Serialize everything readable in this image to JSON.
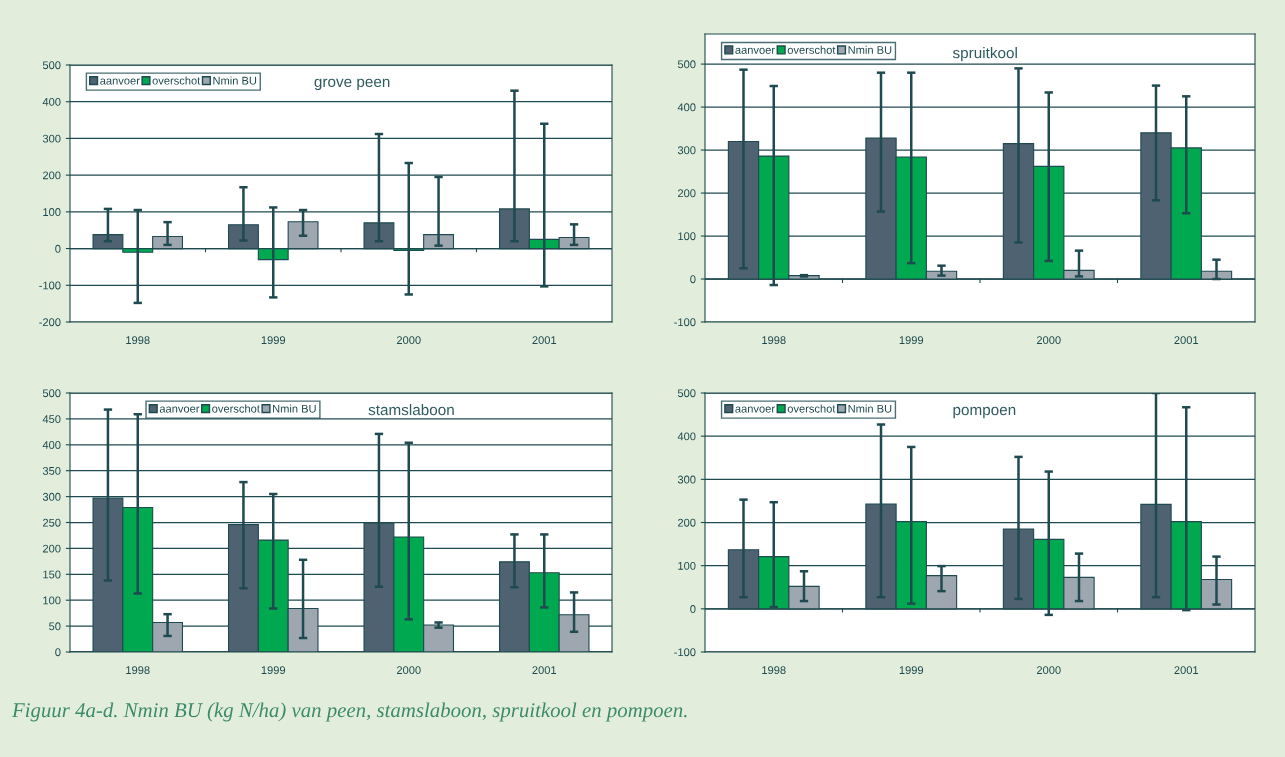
{
  "chart_data": [
    {
      "type": "bar",
      "title": "grove peen",
      "categories": [
        "1998",
        "1999",
        "2000",
        "2001"
      ],
      "ylim": [
        -200,
        500
      ],
      "yticks": [
        -200,
        -100,
        0,
        100,
        200,
        300,
        400,
        500
      ],
      "grid": "y",
      "legend": "top left",
      "series": [
        {
          "name": "aanvoer",
          "color": "#4f6272",
          "values": [
            38,
            65,
            70,
            108
          ],
          "errors": [
            [
              20,
              108
            ],
            [
              22,
              167
            ],
            [
              20,
              312
            ],
            [
              20,
              430
            ]
          ]
        },
        {
          "name": "overschot",
          "color": "#00a84f",
          "values": [
            -10,
            -30,
            -5,
            25
          ],
          "errors": [
            [
              -148,
              105
            ],
            [
              -133,
              112
            ],
            [
              -125,
              233
            ],
            [
              -103,
              340
            ]
          ]
        },
        {
          "name": "Nmin BU",
          "color": "#9ea7b0",
          "values": [
            33,
            73,
            38,
            30
          ],
          "errors": [
            [
              10,
              72
            ],
            [
              35,
              105
            ],
            [
              8,
              195
            ],
            [
              10,
              66
            ]
          ]
        }
      ]
    },
    {
      "type": "bar",
      "title": "spruitkool",
      "categories": [
        "1998",
        "1999",
        "2000",
        "2001"
      ],
      "ylim": [
        -100,
        570
      ],
      "yticks": [
        -100,
        0,
        100,
        200,
        300,
        400,
        500
      ],
      "grid": "y",
      "legend": "top left",
      "series": [
        {
          "name": "aanvoer",
          "color": "#4f6272",
          "values": [
            320,
            328,
            315,
            340
          ],
          "errors": [
            [
              25,
              487
            ],
            [
              157,
              480
            ],
            [
              85,
              490
            ],
            [
              183,
              450
            ]
          ]
        },
        {
          "name": "overschot",
          "color": "#00a84f",
          "values": [
            286,
            284,
            262,
            305
          ],
          "errors": [
            [
              -14,
              449
            ],
            [
              37,
              480
            ],
            [
              42,
              434
            ],
            [
              153,
              425
            ]
          ]
        },
        {
          "name": "Nmin BU",
          "color": "#9ea7b0",
          "values": [
            8,
            18,
            20,
            18
          ],
          "errors": [
            [
              6,
              9
            ],
            [
              8,
              31
            ],
            [
              6,
              66
            ],
            [
              0,
              45
            ]
          ]
        }
      ]
    },
    {
      "type": "bar",
      "title": "stamslaboon",
      "categories": [
        "1998",
        "1999",
        "2000",
        "2001"
      ],
      "ylim": [
        0,
        500
      ],
      "yticks": [
        0,
        50,
        100,
        150,
        200,
        250,
        300,
        350,
        400,
        450,
        500
      ],
      "grid": "y",
      "legend": "top left",
      "series": [
        {
          "name": "aanvoer",
          "color": "#4f6272",
          "values": [
            297,
            246,
            249,
            174
          ],
          "errors": [
            [
              138,
              468
            ],
            [
              123,
              328
            ],
            [
              126,
              421
            ],
            [
              125,
              227
            ]
          ]
        },
        {
          "name": "overschot",
          "color": "#00a84f",
          "values": [
            279,
            216,
            222,
            153
          ],
          "errors": [
            [
              113,
              459
            ],
            [
              84,
              305
            ],
            [
              63,
              404
            ],
            [
              86,
              227
            ]
          ]
        },
        {
          "name": "Nmin BU",
          "color": "#9ea7b0",
          "values": [
            57,
            84,
            52,
            72
          ],
          "errors": [
            [
              31,
              73
            ],
            [
              27,
              178
            ],
            [
              47,
              57
            ],
            [
              39,
              115
            ]
          ]
        }
      ]
    },
    {
      "type": "bar",
      "title": "pompoen",
      "categories": [
        "1998",
        "1999",
        "2000",
        "2001"
      ],
      "ylim": [
        -100,
        500
      ],
      "yticks": [
        -100,
        0,
        100,
        200,
        300,
        400,
        500
      ],
      "grid": "y",
      "legend": "top left",
      "annotations": [
        "Figuur 4a-d. Nmin BU (kg N/ha) van peen, stamslaboon, spruitkool en pompoen."
      ],
      "series": [
        {
          "name": "aanvoer",
          "color": "#4f6272",
          "values": [
            137,
            243,
            185,
            242
          ],
          "errors": [
            [
              27,
              253
            ],
            [
              27,
              427
            ],
            [
              23,
              352
            ],
            [
              27,
              500
            ]
          ]
        },
        {
          "name": "overschot",
          "color": "#00a84f",
          "values": [
            121,
            202,
            161,
            202
          ],
          "errors": [
            [
              4,
              247
            ],
            [
              12,
              375
            ],
            [
              -14,
              318
            ],
            [
              -3,
              467
            ]
          ]
        },
        {
          "name": "Nmin BU",
          "color": "#9ea7b0",
          "values": [
            52,
            77,
            73,
            68
          ],
          "errors": [
            [
              18,
              87
            ],
            [
              41,
              99
            ],
            [
              18,
              128
            ],
            [
              10,
              121
            ]
          ]
        }
      ]
    }
  ]
}
